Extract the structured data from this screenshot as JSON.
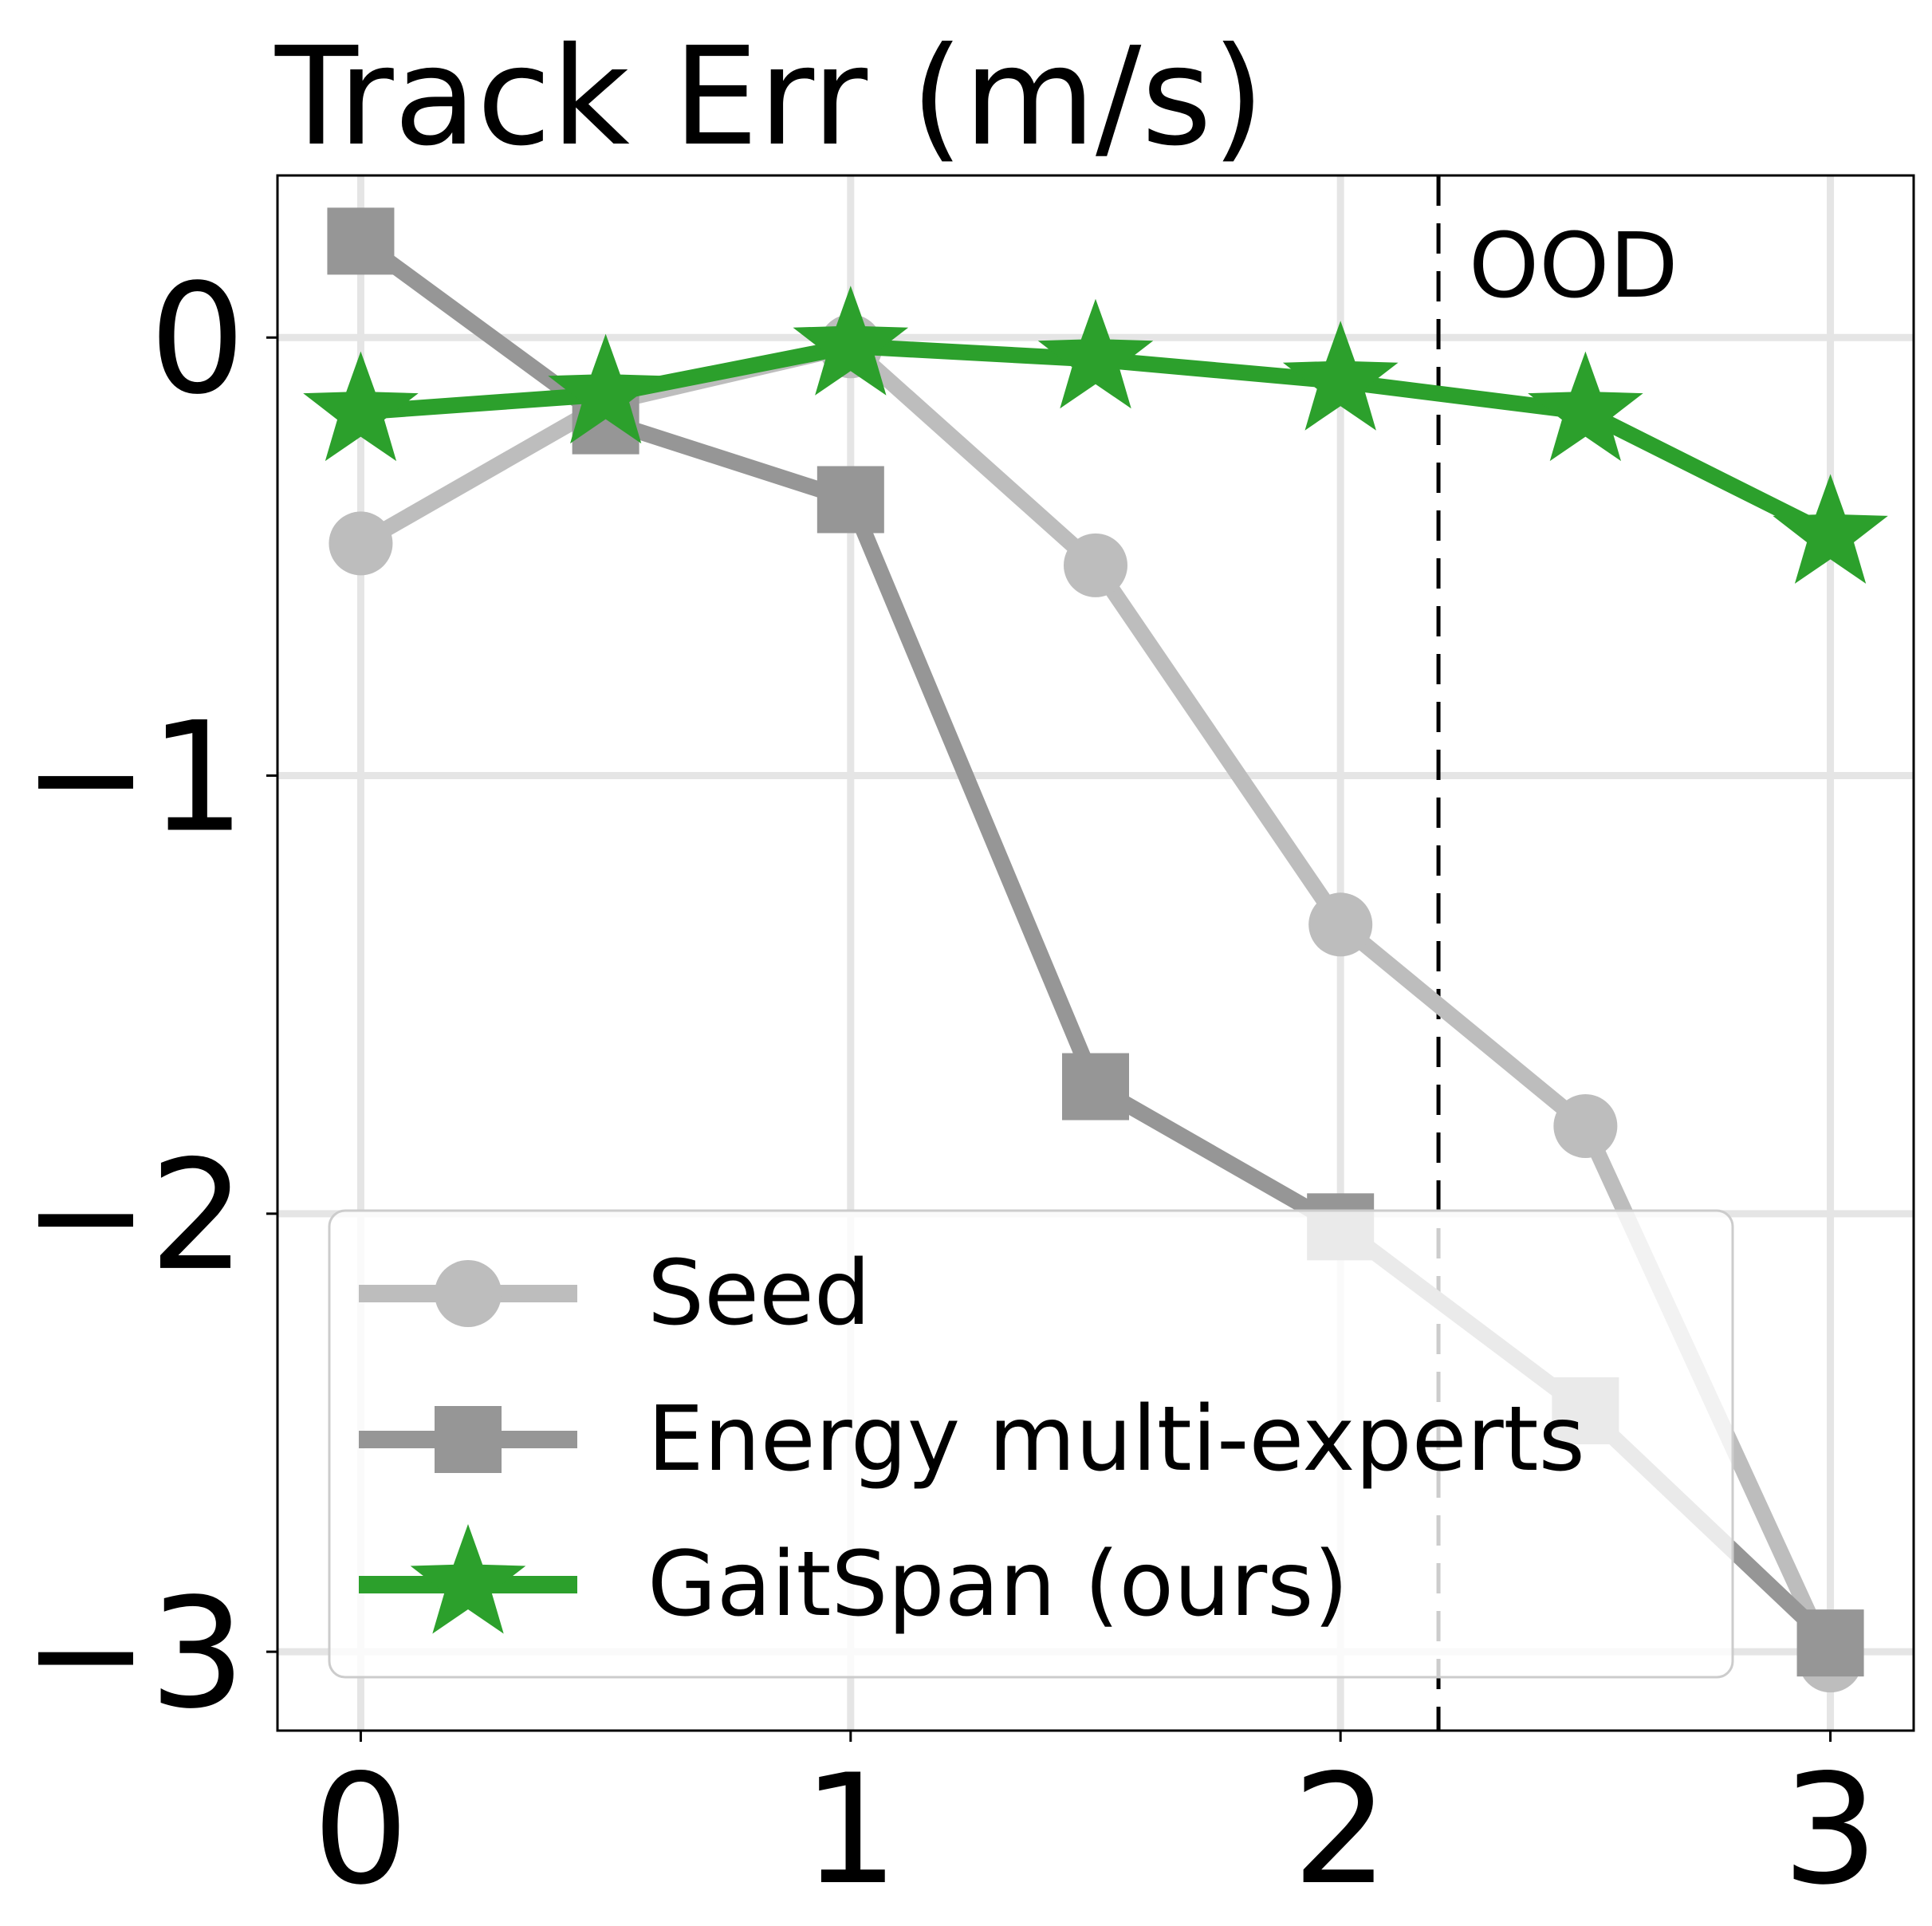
{
  "chart_data": {
    "type": "line",
    "title": "Track Err (m/s)",
    "xlabel": "",
    "ylabel": "",
    "xlim": [
      -0.17,
      3.17
    ],
    "ylim": [
      -3.18,
      0.37
    ],
    "xticks": [
      0,
      1,
      2,
      3
    ],
    "yticks": [
      0,
      -1,
      -2,
      -3
    ],
    "xtick_labels": [
      "0",
      "1",
      "2",
      "3"
    ],
    "ytick_labels": [
      "0",
      "−1",
      "−2",
      "−3"
    ],
    "grid": true,
    "legend_position": "lower-left",
    "annotations": [
      {
        "type": "vertical-dashed-line",
        "x": 2.2,
        "text": "OOD"
      }
    ],
    "series": [
      {
        "name": "Seed",
        "color": "#bdbdbd",
        "marker": "circle",
        "x": [
          0,
          0.5,
          1,
          1.5,
          2,
          2.5,
          3
        ],
        "y": [
          -0.47,
          -0.15,
          -0.02,
          -0.52,
          -1.34,
          -1.8,
          -3.02
        ]
      },
      {
        "name": "Energy multi-experts",
        "color": "#969696",
        "marker": "square",
        "x": [
          0,
          0.5,
          1,
          1.5,
          2,
          2.5,
          3
        ],
        "y": [
          0.22,
          -0.19,
          -0.37,
          -1.71,
          -2.03,
          -2.45,
          -2.98
        ]
      },
      {
        "name": "GaitSpan (ours)",
        "color": "#2ca02c",
        "marker": "star",
        "x": [
          0,
          0.5,
          1,
          1.5,
          2,
          2.5,
          3
        ],
        "y": [
          -0.17,
          -0.13,
          -0.02,
          -0.05,
          -0.1,
          -0.17,
          -0.45
        ]
      }
    ]
  }
}
